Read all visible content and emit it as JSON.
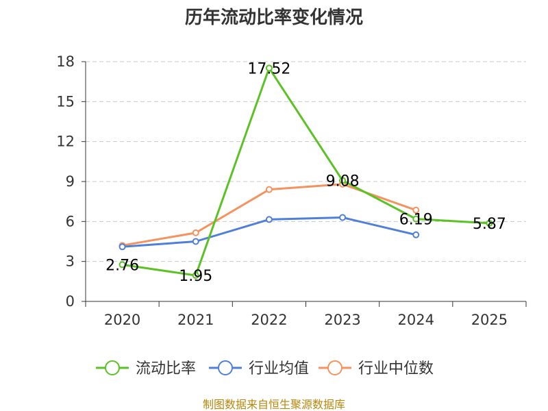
{
  "chart_data": {
    "type": "line",
    "title": "历年流动比率变化情况",
    "categories": [
      "2020",
      "2021",
      "2022",
      "2023",
      "2024",
      "2025"
    ],
    "ylim": [
      0,
      18
    ],
    "yticks": [
      0,
      3,
      6,
      9,
      12,
      15,
      18
    ],
    "grid": true,
    "legend_position": "bottom",
    "series": [
      {
        "name": "流动比率",
        "color": "#5bc225",
        "values": [
          2.76,
          1.95,
          17.52,
          9.08,
          6.19,
          5.87
        ],
        "labels": [
          "2.76",
          "1.95",
          "17.52",
          "9.08",
          "6.19",
          "5.87"
        ]
      },
      {
        "name": "行业均值",
        "color": "#4e7fd9",
        "values": [
          4.1,
          4.5,
          6.15,
          6.3,
          5.0,
          null
        ]
      },
      {
        "name": "行业中位数",
        "color": "#f5925e",
        "values": [
          4.2,
          5.15,
          8.4,
          8.8,
          6.85,
          null
        ]
      }
    ]
  },
  "source_text": "制图数据来自恒生聚源数据库"
}
